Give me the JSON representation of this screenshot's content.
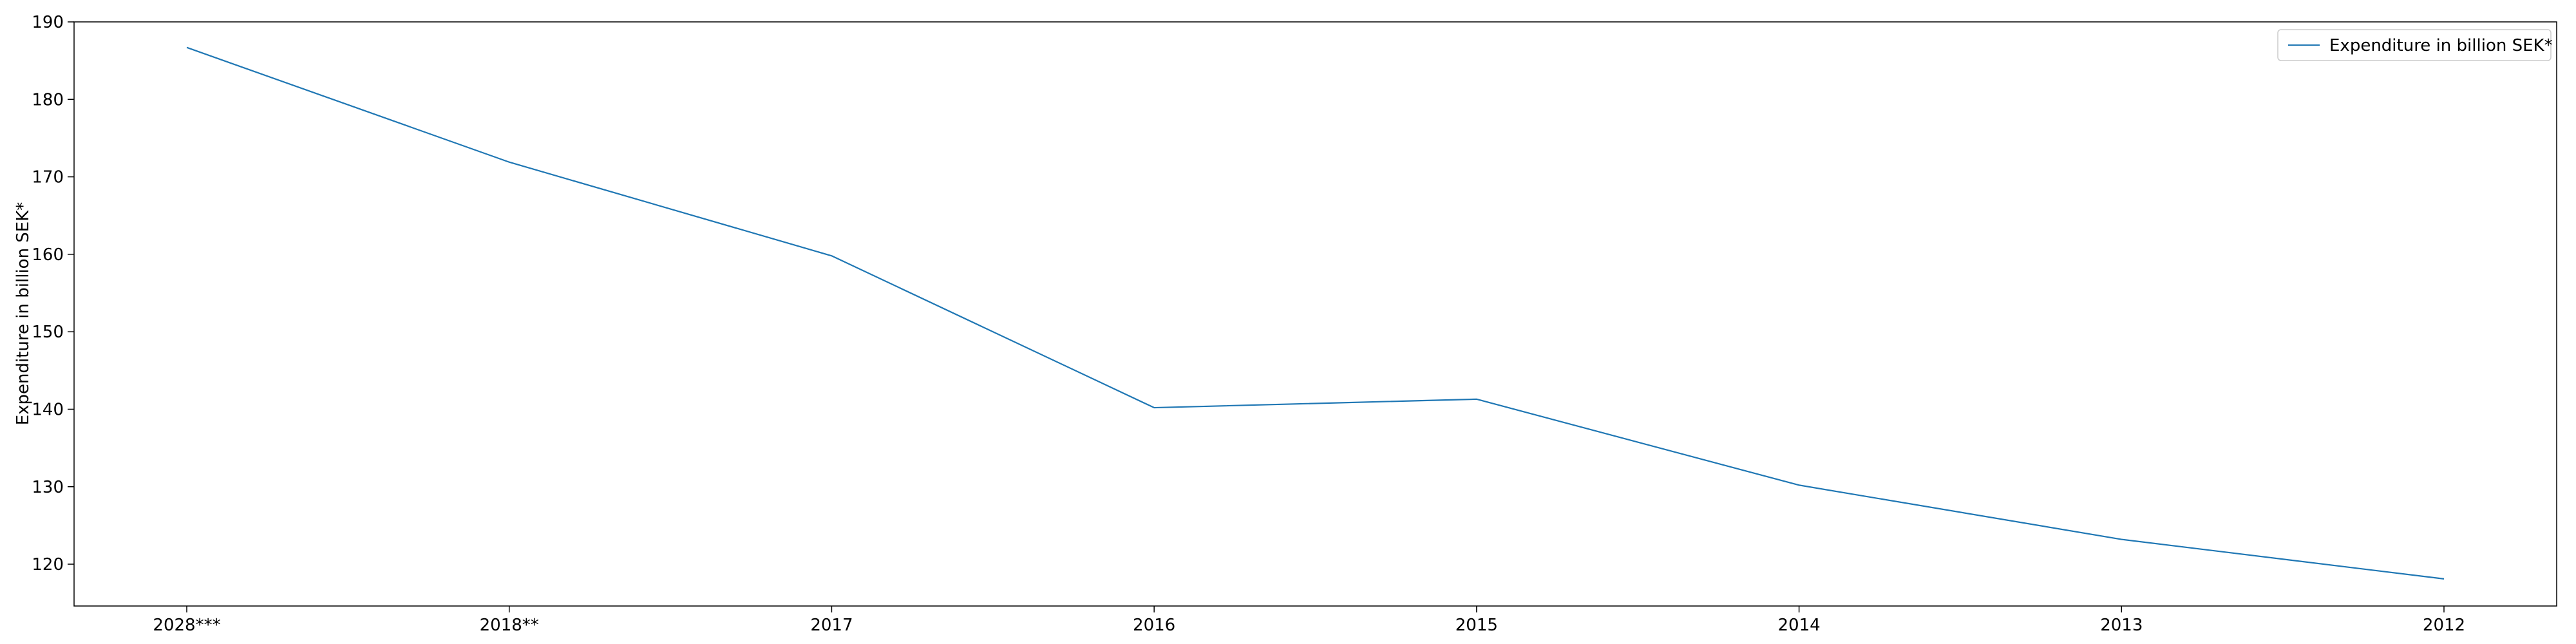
{
  "chart_data": {
    "type": "line",
    "title": "",
    "xlabel": "",
    "ylabel": "Expenditure in billion SEK*",
    "categories": [
      "2028***",
      "2018**",
      "2017",
      "2016",
      "2015",
      "2014",
      "2013",
      "2012"
    ],
    "series": [
      {
        "name": "Expenditure in billion SEK*",
        "color": "#1f77b4",
        "values": [
          186.7,
          171.9,
          159.8,
          140.2,
          141.3,
          130.2,
          123.2,
          118.1
        ]
      }
    ],
    "ylim": [
      114.6,
      190.0
    ],
    "yticks": [
      120,
      130,
      140,
      150,
      160,
      170,
      180,
      190
    ],
    "grid": false,
    "legend": "top-right"
  }
}
